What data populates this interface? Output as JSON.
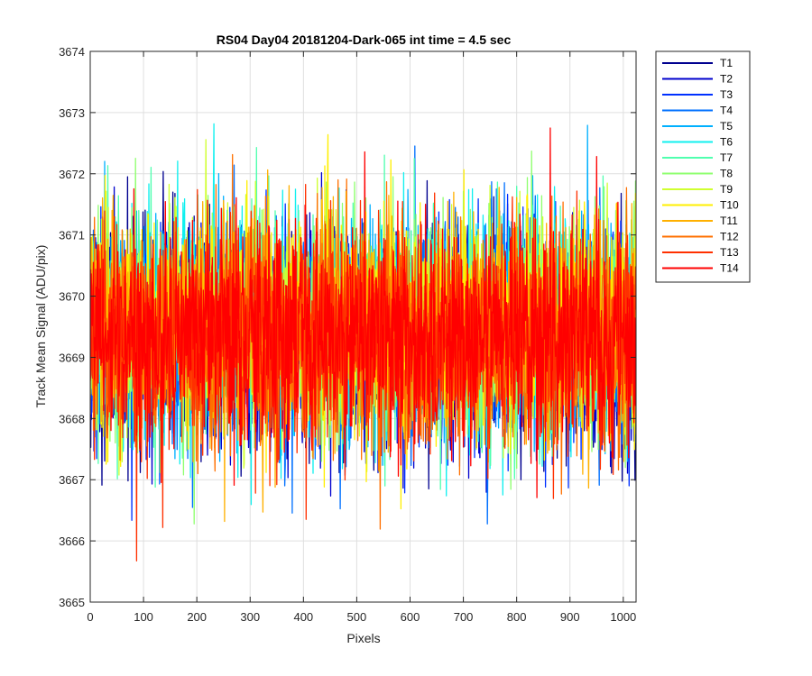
{
  "chart_data": {
    "type": "line",
    "title": "RS04 Day04 20181204-Dark-065 int time = 4.5 sec",
    "xlabel": "Pixels",
    "ylabel": "Track Mean Signal (ADU/pix)",
    "xlim": [
      0,
      1024
    ],
    "ylim": [
      3665,
      3674
    ],
    "xticks": [
      0,
      100,
      200,
      300,
      400,
      500,
      600,
      700,
      800,
      900,
      1000
    ],
    "yticks": [
      3665,
      3666,
      3667,
      3668,
      3669,
      3670,
      3671,
      3672,
      3673,
      3674
    ],
    "grid": true,
    "legend_position": "outside-top-right",
    "noise_sd": 0.9,
    "series": [
      {
        "name": "T1",
        "color": "#00008F",
        "mean": 3669.3
      },
      {
        "name": "T2",
        "color": "#0000CC",
        "mean": 3669.25
      },
      {
        "name": "T3",
        "color": "#0030FF",
        "mean": 3669.4
      },
      {
        "name": "T4",
        "color": "#0070FF",
        "mean": 3669.35
      },
      {
        "name": "T5",
        "color": "#00B0FF",
        "mean": 3669.45
      },
      {
        "name": "T6",
        "color": "#10F0EF",
        "mean": 3669.55
      },
      {
        "name": "T7",
        "color": "#50FFAF",
        "mean": 3669.5
      },
      {
        "name": "T8",
        "color": "#90FF70",
        "mean": 3669.55
      },
      {
        "name": "T9",
        "color": "#D0FF30",
        "mean": 3669.45
      },
      {
        "name": "T10",
        "color": "#FFEF00",
        "mean": 3669.5
      },
      {
        "name": "T11",
        "color": "#FFB000",
        "mean": 3669.4
      },
      {
        "name": "T12",
        "color": "#FF7000",
        "mean": 3669.35
      },
      {
        "name": "T13",
        "color": "#FF3000",
        "mean": 3669.3
      },
      {
        "name": "T14",
        "color": "#FF0000",
        "mean": 3669.35
      }
    ]
  }
}
